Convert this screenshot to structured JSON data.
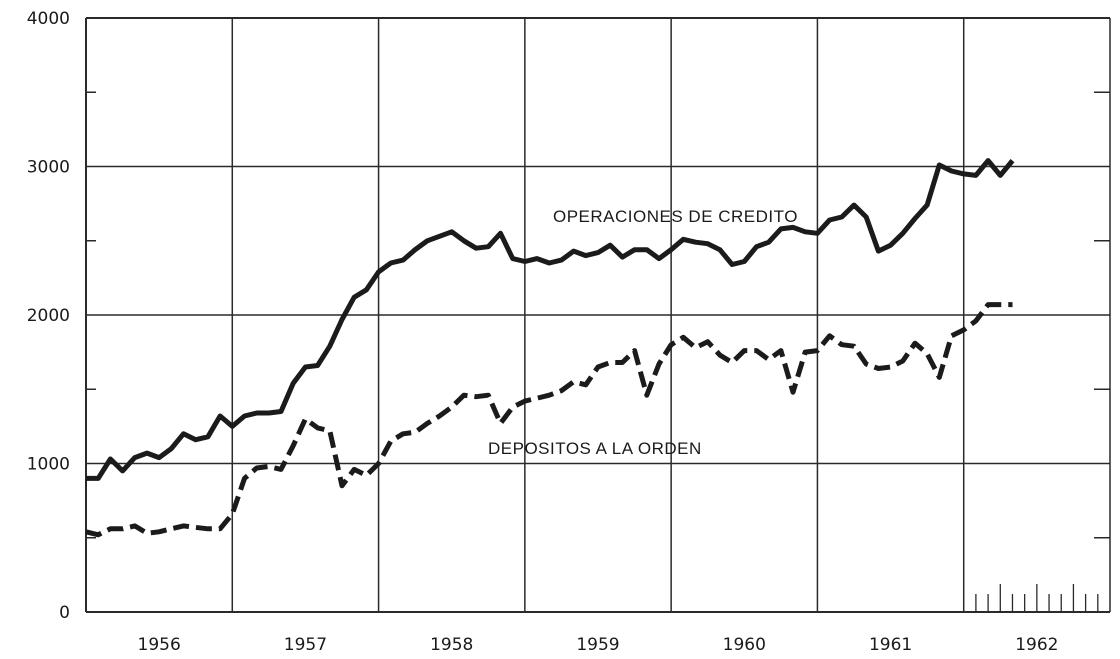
{
  "chart_data": {
    "type": "line",
    "x_tick_labels": [
      "1956",
      "1957",
      "1958",
      "1959",
      "1960",
      "1961",
      "1962"
    ],
    "y_tick_labels": [
      "0",
      "1000",
      "2000",
      "3000",
      "4000"
    ],
    "ylim": [
      0,
      4000
    ],
    "xlim": [
      0,
      84
    ],
    "grid": true,
    "annotations": [
      "OPERACIONES DE CREDITO",
      "DEPOSITOS A LA ORDEN"
    ],
    "series": [
      {
        "name": "OPERACIONES DE CREDITO",
        "style": "solid",
        "x": [
          0,
          1,
          2,
          3,
          4,
          5,
          6,
          7,
          8,
          9,
          10,
          11,
          12,
          13,
          14,
          15,
          16,
          17,
          18,
          19,
          20,
          21,
          22,
          23,
          24,
          25,
          26,
          27,
          28,
          29,
          30,
          31,
          32,
          33,
          34,
          35,
          36,
          37,
          38,
          39,
          40,
          41,
          42,
          43,
          44,
          45,
          46,
          47,
          48,
          49,
          50,
          51,
          52,
          53,
          54,
          55,
          56,
          57,
          58,
          59,
          60,
          61,
          62,
          63,
          64,
          65,
          66,
          67,
          68,
          69,
          70,
          71,
          72,
          73,
          74,
          75,
          76
        ],
        "values": [
          900,
          900,
          1030,
          950,
          1040,
          1070,
          1040,
          1100,
          1200,
          1160,
          1180,
          1320,
          1250,
          1320,
          1340,
          1340,
          1350,
          1540,
          1650,
          1660,
          1790,
          1970,
          2120,
          2170,
          2290,
          2350,
          2370,
          2440,
          2500,
          2530,
          2560,
          2500,
          2450,
          2460,
          2550,
          2380,
          2360,
          2380,
          2350,
          2370,
          2430,
          2400,
          2420,
          2470,
          2390,
          2440,
          2440,
          2380,
          2440,
          2510,
          2490,
          2480,
          2440,
          2340,
          2360,
          2460,
          2490,
          2580,
          2590,
          2560,
          2550,
          2640,
          2660,
          2740,
          2660,
          2430,
          2470,
          2550,
          2650,
          2740,
          3010,
          2970,
          2950,
          2940,
          3040,
          2940,
          3040
        ],
        "values_note": ""
      },
      {
        "name": "DEPOSITOS A LA ORDEN",
        "style": "dashed",
        "x": [
          0,
          1,
          2,
          3,
          4,
          5,
          6,
          7,
          8,
          9,
          10,
          11,
          12,
          13,
          14,
          15,
          16,
          17,
          18,
          19,
          20,
          21,
          22,
          23,
          24,
          25,
          26,
          27,
          28,
          29,
          30,
          31,
          32,
          33,
          34,
          35,
          36,
          37,
          38,
          39,
          40,
          41,
          42,
          43,
          44,
          45,
          46,
          47,
          48,
          49,
          50,
          51,
          52,
          53,
          54,
          55,
          56,
          57,
          58,
          59,
          60,
          61,
          62,
          63,
          64,
          65,
          66,
          67,
          68,
          69,
          70,
          71,
          72,
          73,
          74,
          75,
          76
        ],
        "values": [
          540,
          520,
          560,
          560,
          580,
          530,
          540,
          560,
          580,
          570,
          560,
          560,
          660,
          900,
          970,
          980,
          960,
          1120,
          1300,
          1240,
          1220,
          850,
          960,
          920,
          1000,
          1150,
          1200,
          1210,
          1270,
          1320,
          1380,
          1460,
          1450,
          1460,
          1270,
          1380,
          1420,
          1440,
          1460,
          1490,
          1550,
          1530,
          1650,
          1680,
          1680,
          1760,
          1460,
          1670,
          1800,
          1850,
          1780,
          1820,
          1730,
          1680,
          1760,
          1760,
          1700,
          1760,
          1480,
          1750,
          1760,
          1860,
          1800,
          1790,
          1670,
          1640,
          1650,
          1690,
          1810,
          1740,
          1580,
          1860,
          1900,
          1960,
          2070,
          2070,
          2070
        ]
      }
    ]
  }
}
